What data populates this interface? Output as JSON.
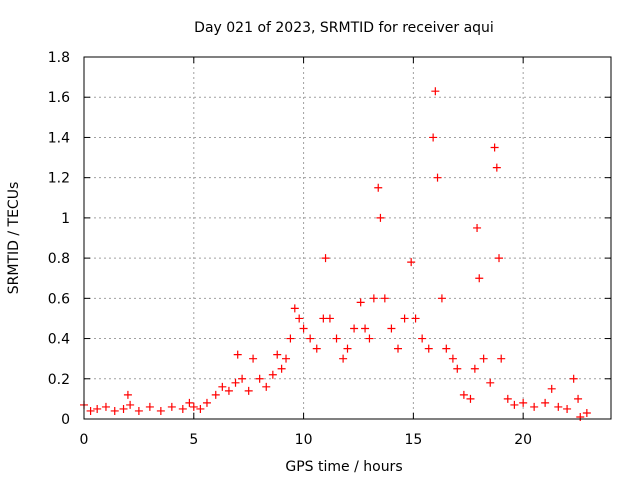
{
  "chart_data": {
    "type": "scatter",
    "title": "Day 021 of 2023, SRMTID for receiver aqui",
    "xlabel": "GPS time / hours",
    "ylabel": "SRMTID / TECUs",
    "xlim": [
      0,
      24
    ],
    "ylim": [
      0,
      1.8
    ],
    "xticks": [
      0,
      5,
      10,
      15,
      20
    ],
    "xtick_labels": [
      "0",
      "5",
      "10",
      "15",
      "20"
    ],
    "yticks": [
      0,
      0.2,
      0.4,
      0.6,
      0.8,
      1.0,
      1.2,
      1.4,
      1.6,
      1.8
    ],
    "ytick_labels": [
      "0",
      "0.2",
      "0.4",
      "0.6",
      "0.8",
      "1",
      "1.2",
      "1.4",
      "1.6",
      "1.8"
    ],
    "grid": true,
    "marker": "+",
    "marker_color": "#ff0000",
    "series": [
      {
        "name": "SRMTID",
        "points": [
          [
            0.0,
            0.07
          ],
          [
            0.3,
            0.04
          ],
          [
            0.6,
            0.05
          ],
          [
            1.0,
            0.06
          ],
          [
            1.4,
            0.04
          ],
          [
            1.8,
            0.05
          ],
          [
            2.0,
            0.12
          ],
          [
            2.1,
            0.07
          ],
          [
            2.5,
            0.04
          ],
          [
            3.0,
            0.06
          ],
          [
            3.5,
            0.04
          ],
          [
            4.0,
            0.06
          ],
          [
            4.5,
            0.05
          ],
          [
            4.8,
            0.08
          ],
          [
            5.0,
            0.06
          ],
          [
            5.3,
            0.05
          ],
          [
            5.6,
            0.08
          ],
          [
            6.0,
            0.12
          ],
          [
            6.3,
            0.16
          ],
          [
            6.6,
            0.14
          ],
          [
            6.9,
            0.18
          ],
          [
            7.0,
            0.32
          ],
          [
            7.2,
            0.2
          ],
          [
            7.5,
            0.14
          ],
          [
            7.7,
            0.3
          ],
          [
            8.0,
            0.2
          ],
          [
            8.3,
            0.16
          ],
          [
            8.6,
            0.22
          ],
          [
            8.8,
            0.32
          ],
          [
            9.0,
            0.25
          ],
          [
            9.2,
            0.3
          ],
          [
            9.4,
            0.4
          ],
          [
            9.6,
            0.55
          ],
          [
            9.8,
            0.5
          ],
          [
            10.0,
            0.45
          ],
          [
            10.3,
            0.4
          ],
          [
            10.6,
            0.35
          ],
          [
            10.9,
            0.5
          ],
          [
            11.0,
            0.8
          ],
          [
            11.2,
            0.5
          ],
          [
            11.5,
            0.4
          ],
          [
            11.8,
            0.3
          ],
          [
            12.0,
            0.35
          ],
          [
            12.3,
            0.45
          ],
          [
            12.6,
            0.58
          ],
          [
            12.8,
            0.45
          ],
          [
            13.0,
            0.4
          ],
          [
            13.2,
            0.6
          ],
          [
            13.4,
            1.15
          ],
          [
            13.5,
            1.0
          ],
          [
            13.7,
            0.6
          ],
          [
            14.0,
            0.45
          ],
          [
            14.3,
            0.35
          ],
          [
            14.6,
            0.5
          ],
          [
            14.9,
            0.78
          ],
          [
            15.1,
            0.5
          ],
          [
            15.4,
            0.4
          ],
          [
            15.7,
            0.35
          ],
          [
            15.9,
            1.4
          ],
          [
            16.0,
            1.63
          ],
          [
            16.1,
            1.2
          ],
          [
            16.3,
            0.6
          ],
          [
            16.5,
            0.35
          ],
          [
            16.8,
            0.3
          ],
          [
            17.0,
            0.25
          ],
          [
            17.3,
            0.12
          ],
          [
            17.6,
            0.1
          ],
          [
            17.8,
            0.25
          ],
          [
            17.9,
            0.95
          ],
          [
            18.0,
            0.7
          ],
          [
            18.2,
            0.3
          ],
          [
            18.5,
            0.18
          ],
          [
            18.7,
            1.35
          ],
          [
            18.8,
            1.25
          ],
          [
            18.9,
            0.8
          ],
          [
            19.0,
            0.3
          ],
          [
            19.3,
            0.1
          ],
          [
            19.6,
            0.07
          ],
          [
            20.0,
            0.08
          ],
          [
            20.5,
            0.06
          ],
          [
            21.0,
            0.08
          ],
          [
            21.3,
            0.15
          ],
          [
            21.6,
            0.06
          ],
          [
            22.0,
            0.05
          ],
          [
            22.3,
            0.2
          ],
          [
            22.5,
            0.1
          ],
          [
            22.6,
            0.01
          ],
          [
            22.9,
            0.03
          ]
        ]
      }
    ]
  }
}
